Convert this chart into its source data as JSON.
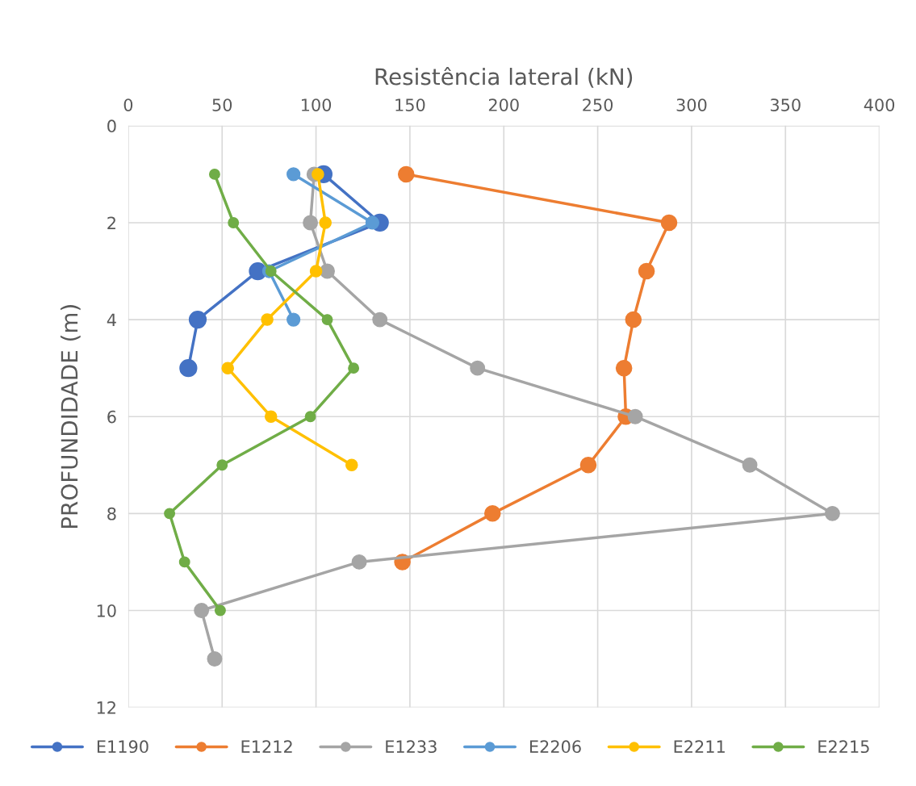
{
  "chart_data": {
    "type": "line",
    "xlabel": "Resistência lateral (kN)",
    "ylabel": "PROFUNDIDADE (m)",
    "xlim": [
      0,
      400
    ],
    "xticks": [
      0,
      50,
      100,
      150,
      200,
      250,
      300,
      350,
      400
    ],
    "ylim": [
      12,
      0
    ],
    "yticks": [
      0,
      2,
      4,
      6,
      8,
      10,
      12
    ],
    "grid": true,
    "legend": "bottom",
    "marker": "circle",
    "line_style": "solid",
    "series": [
      {
        "name": "E1190",
        "color": "#4472c4",
        "x": [
          104,
          134,
          69,
          37,
          32
        ],
        "values": [
          1,
          2,
          3,
          4,
          5
        ]
      },
      {
        "name": "E1212",
        "color": "#ed7d31",
        "x": [
          148,
          288,
          276,
          269,
          264,
          265,
          245,
          194,
          146
        ],
        "values": [
          1,
          2,
          3,
          4,
          5,
          6,
          7,
          8,
          9
        ]
      },
      {
        "name": "E1233",
        "color": "#a5a5a5",
        "x": [
          99,
          97,
          106,
          134,
          186,
          270,
          331,
          375,
          123,
          39,
          46
        ],
        "values": [
          1,
          2,
          3,
          4,
          5,
          6,
          7,
          8,
          9,
          10,
          11
        ]
      },
      {
        "name": "E2206",
        "color": "#5b9bd5",
        "x": [
          88,
          130,
          75,
          88
        ],
        "values": [
          1,
          2,
          3,
          4
        ]
      },
      {
        "name": "E2211",
        "color": "#ffc000",
        "x": [
          101,
          105,
          100,
          74,
          53,
          76,
          119
        ],
        "values": [
          1,
          2,
          3,
          4,
          5,
          6,
          7
        ]
      },
      {
        "name": "E2215",
        "color": "#70ad47",
        "x": [
          46,
          56,
          76,
          106,
          120,
          97,
          50,
          22,
          30,
          49
        ],
        "values": [
          1,
          2,
          3,
          4,
          5,
          6,
          7,
          8,
          9,
          10
        ]
      }
    ]
  }
}
